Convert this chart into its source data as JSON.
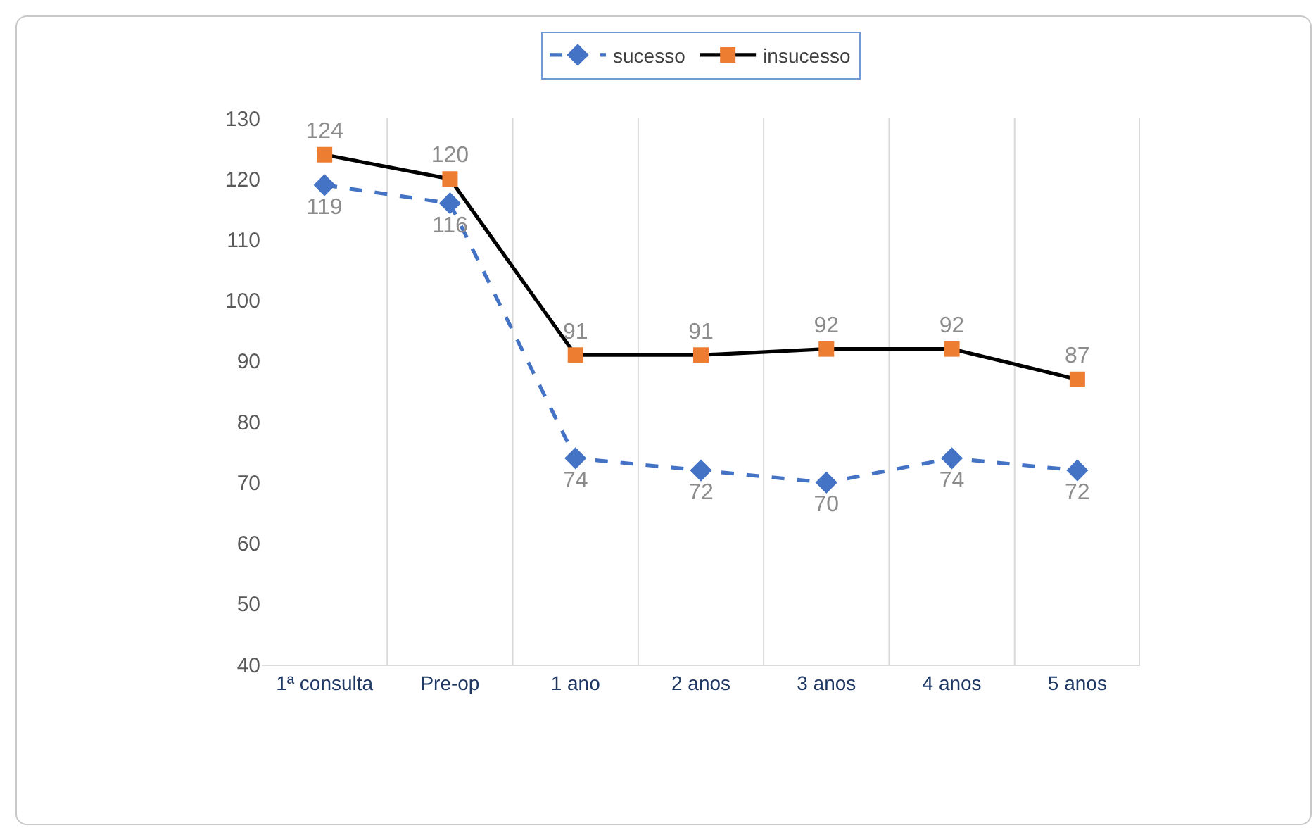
{
  "chart_data": {
    "type": "line",
    "categories": [
      "1ª consulta",
      "Pre-op",
      "1 ano",
      "2 anos",
      "3 anos",
      "4 anos",
      "5 anos"
    ],
    "series": [
      {
        "name": "sucesso",
        "color": "#4472c4",
        "values": [
          119,
          116,
          74,
          72,
          70,
          74,
          72
        ],
        "marker": "diamond",
        "line_style": "dashed"
      },
      {
        "name": "insucesso",
        "color": "#000000",
        "colors": [
          "#ed7d31",
          "#ed7d31",
          "#ed7d31",
          "#ed7d31",
          "#ed7d31",
          "#ed7d31",
          "#ed7d31"
        ],
        "values": [
          124,
          120,
          91,
          91,
          92,
          92,
          87
        ],
        "marker": "square",
        "line_style": "solid"
      }
    ],
    "ylim": [
      40,
      130
    ],
    "yticks": [
      40,
      50,
      60,
      70,
      80,
      90,
      100,
      110,
      120,
      130
    ],
    "grid": "x",
    "legend": "top",
    "data_labels": true
  }
}
